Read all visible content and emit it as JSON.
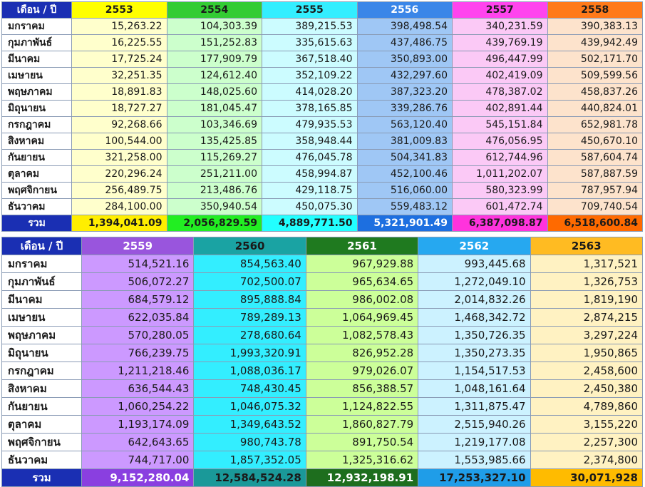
{
  "table1": {
    "header_label": "เดือน / ปี",
    "years": [
      "2553",
      "2554",
      "2555",
      "2556",
      "2557",
      "2558"
    ],
    "header_colors": [
      "#ffff00",
      "#33cc33",
      "#33eeff",
      "#3a86e8",
      "#ff44ee",
      "#ff7a1a"
    ],
    "header_text_colors": [
      "#1a1a1a",
      "#1a1a1a",
      "#1a1a1a",
      "#ffffff",
      "#1a1a1a",
      "#1a1a1a"
    ],
    "body_colors": [
      "#ffffcc",
      "#ccffcc",
      "#ccfcff",
      "#9fc7f5",
      "#fbc9f6",
      "#fde3cc"
    ],
    "total_colors": [
      "#ffee00",
      "#22ee22",
      "#22ffff",
      "#1d6fe0",
      "#ff33dd",
      "#ff6a00"
    ],
    "total_text_colors": [
      "#1a1a1a",
      "#1a1a1a",
      "#1a1a1a",
      "#ffffff",
      "#1a1a1a",
      "#1a1a1a"
    ],
    "rows": [
      {
        "month": "มกราคม",
        "values": [
          "15,263.22",
          "104,303.39",
          "389,215.53",
          "398,498.54",
          "340,231.59",
          "390,383.13"
        ]
      },
      {
        "month": "กุมภาพันธ์",
        "values": [
          "16,225.55",
          "151,252.83",
          "335,615.63",
          "437,486.75",
          "439,769.19",
          "439,942.49"
        ]
      },
      {
        "month": "มีนาคม",
        "values": [
          "17,725.24",
          "177,909.79",
          "367,518.40",
          "350,893.00",
          "496,447.99",
          "502,171.70"
        ]
      },
      {
        "month": "เมษายน",
        "values": [
          "32,251.35",
          "124,612.40",
          "352,109.22",
          "432,297.60",
          "402,419.09",
          "509,599.56"
        ]
      },
      {
        "month": "พฤษภาคม",
        "values": [
          "18,891.83",
          "148,025.60",
          "414,028.20",
          "387,323.20",
          "478,387.02",
          "458,837.26"
        ]
      },
      {
        "month": "มิถุนายน",
        "values": [
          "18,727.27",
          "181,045.47",
          "378,165.85",
          "339,286.76",
          "402,891.44",
          "440,824.01"
        ]
      },
      {
        "month": "กรกฎาคม",
        "values": [
          "92,268.66",
          "103,346.69",
          "479,935.53",
          "563,120.40",
          "545,151.84",
          "652,981.78"
        ]
      },
      {
        "month": "สิงหาคม",
        "values": [
          "100,544.00",
          "135,425.85",
          "358,948.44",
          "381,009.83",
          "476,056.95",
          "450,670.10"
        ]
      },
      {
        "month": "กันยายน",
        "values": [
          "321,258.00",
          "115,269.27",
          "476,045.78",
          "504,341.83",
          "612,744.96",
          "587,604.74"
        ]
      },
      {
        "month": "ตุลาคม",
        "values": [
          "220,296.24",
          "251,211.00",
          "458,994.87",
          "452,100.46",
          "1,011,202.07",
          "587,887.59"
        ]
      },
      {
        "month": "พฤศจิกายน",
        "values": [
          "256,489.75",
          "213,486.76",
          "429,118.75",
          "516,060.00",
          "580,323.99",
          "787,957.94"
        ]
      },
      {
        "month": "ธันวาคม",
        "values": [
          "284,100.00",
          "350,940.54",
          "450,075.30",
          "559,483.12",
          "601,472.74",
          "709,740.54"
        ]
      }
    ],
    "total_label": "รวม",
    "totals": [
      "1,394,041.09",
      "2,056,829.59",
      "4,889,771.50",
      "5,321,901.49",
      "6,387,098.87",
      "6,518,600.84"
    ]
  },
  "table2": {
    "header_label": "เดือน / ปี",
    "years": [
      "2559",
      "2560",
      "2561",
      "2562",
      "2563"
    ],
    "header_colors": [
      "#9955dd",
      "#1aa3a3",
      "#1f7a1f",
      "#26a8f0",
      "#ffbb22"
    ],
    "header_text_colors": [
      "#ffffff",
      "#1a1a1a",
      "#ffffff",
      "#ffffff",
      "#1a1a1a"
    ],
    "body_colors": [
      "#cc99ff",
      "#33eeff",
      "#ccff99",
      "#ccf2ff",
      "#fff2c2"
    ],
    "total_colors": [
      "#8a3fe0",
      "#1a9999",
      "#1e6e1e",
      "#1f9de8",
      "#ffbb00"
    ],
    "total_text_colors": [
      "#ffffff",
      "#1a1a1a",
      "#ffffff",
      "#1a1a1a",
      "#1a1a1a"
    ],
    "rows": [
      {
        "month": "มกราคม",
        "values": [
          "514,521.16",
          "854,563.40",
          "967,929.88",
          "993,445.68",
          "1,317,521"
        ]
      },
      {
        "month": "กุมภาพันธ์",
        "values": [
          "506,072.27",
          "702,500.07",
          "965,634.65",
          "1,272,049.10",
          "1,326,753"
        ]
      },
      {
        "month": "มีนาคม",
        "values": [
          "684,579.12",
          "895,888.84",
          "986,002.08",
          "2,014,832.26",
          "1,819,190"
        ]
      },
      {
        "month": "เมษายน",
        "values": [
          "622,035.84",
          "789,289.13",
          "1,064,969.45",
          "1,468,342.72",
          "2,874,215"
        ]
      },
      {
        "month": "พฤษภาคม",
        "values": [
          "570,280.05",
          "278,680.64",
          "1,082,578.43",
          "1,350,726.35",
          "3,297,224"
        ]
      },
      {
        "month": "มิถุนายน",
        "values": [
          "766,239.75",
          "1,993,320.91",
          "826,952.28",
          "1,350,273.35",
          "1,950,865"
        ]
      },
      {
        "month": "กรกฎาคม",
        "values": [
          "1,211,218.46",
          "1,088,036.17",
          "979,026.07",
          "1,154,517.53",
          "2,458,600"
        ]
      },
      {
        "month": "สิงหาคม",
        "values": [
          "636,544.43",
          "748,430.45",
          "856,388.57",
          "1,048,161.64",
          "2,450,380"
        ]
      },
      {
        "month": "กันยายน",
        "values": [
          "1,060,254.22",
          "1,046,075.32",
          "1,124,822.55",
          "1,311,875.47",
          "4,789,860"
        ]
      },
      {
        "month": "ตุลาคม",
        "values": [
          "1,193,174.09",
          "1,349,643.52",
          "1,860,827.79",
          "2,515,940.26",
          "3,155,220"
        ]
      },
      {
        "month": "พฤศจิกายน",
        "values": [
          "642,643.65",
          "980,743.78",
          "891,750.54",
          "1,219,177.08",
          "2,257,300"
        ]
      },
      {
        "month": "ธันวาคม",
        "values": [
          "744,717.00",
          "1,857,352.05",
          "1,325,316.62",
          "1,553,985.66",
          "2,374,800"
        ]
      }
    ],
    "total_label": "รวม",
    "totals": [
      "9,152,280.04",
      "12,584,524.28",
      "12,932,198.91",
      "17,253,327.10",
      "30,071,928"
    ]
  }
}
